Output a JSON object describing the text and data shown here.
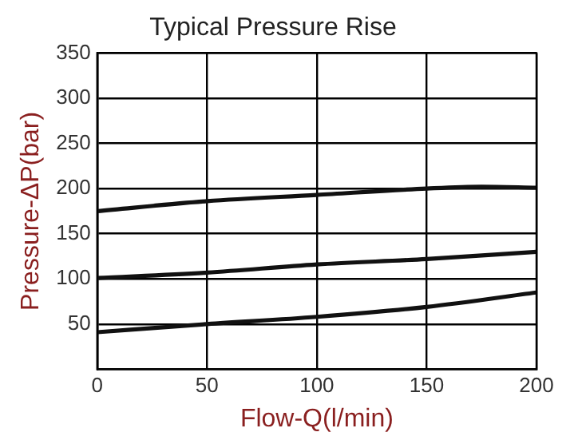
{
  "chart_data": {
    "type": "line",
    "title": "Typical Pressure Rise",
    "xlabel": "Flow-Q(l/min)",
    "ylabel": "Pressure-ΔP(bar)",
    "x": [
      0,
      50,
      100,
      150,
      175,
      200
    ],
    "series": [
      {
        "color": "#111111",
        "values": [
          175,
          186,
          193,
          200,
          202,
          201
        ]
      },
      {
        "color": "#111111",
        "values": [
          101,
          107,
          116,
          122,
          null,
          130
        ]
      },
      {
        "color": "#111111",
        "values": [
          41,
          50,
          58,
          69,
          null,
          85
        ]
      }
    ],
    "xlim": [
      0,
      200
    ],
    "xticks": [
      0,
      50,
      100,
      150,
      200
    ],
    "ylim": [
      0,
      350
    ],
    "yticks": [
      50,
      100,
      150,
      200,
      250,
      300,
      350
    ],
    "grid": true,
    "legend": false,
    "marker": "none",
    "line_style": "solid"
  }
}
